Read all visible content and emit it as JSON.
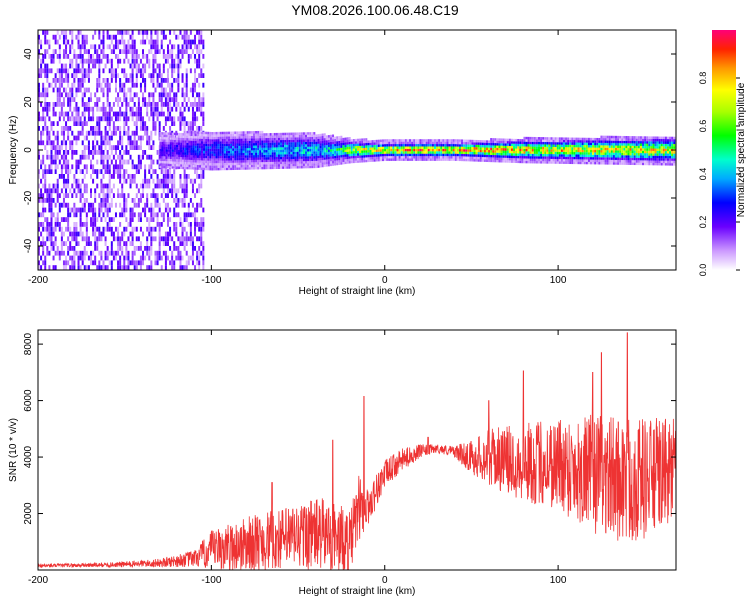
{
  "title": "YM08.2026.100.06.48.C19",
  "chart_data": [
    {
      "type": "heatmap",
      "xlabel": "Height of straight line (km)",
      "ylabel": "Frequency (Hz)",
      "xlim": [
        -200,
        168
      ],
      "ylim": [
        -50,
        50
      ],
      "xticks": [
        -200,
        -100,
        0,
        100
      ],
      "yticks": [
        -40,
        -20,
        0,
        20,
        40
      ],
      "colorbar": {
        "label": "Normalized spectral amplitude",
        "range": [
          0,
          1
        ],
        "ticks": [
          0.0,
          0.2,
          0.4,
          0.6,
          0.8
        ]
      },
      "features": {
        "noise_region_x": [
          -200,
          -105
        ],
        "band_start_x": -130,
        "band_center_freq": 0,
        "band_halfwidth_hz": [
          [
            -130,
            5
          ],
          [
            -100,
            6
          ],
          [
            -40,
            5
          ],
          [
            -20,
            3
          ],
          [
            0,
            2
          ],
          [
            40,
            2
          ],
          [
            80,
            3
          ],
          [
            168,
            4
          ]
        ],
        "peak_amplitude_by_x": [
          [
            -130,
            0.25
          ],
          [
            -100,
            0.35
          ],
          [
            -60,
            0.45
          ],
          [
            -30,
            0.5
          ],
          [
            -20,
            0.7
          ],
          [
            0,
            0.9
          ],
          [
            40,
            0.95
          ],
          [
            100,
            0.85
          ],
          [
            168,
            0.8
          ]
        ]
      }
    },
    {
      "type": "line",
      "xlabel": "Height of straight line (km)",
      "ylabel": "SNR (10 * v/v)",
      "xlim": [
        -200,
        168
      ],
      "ylim": [
        0,
        8500
      ],
      "xticks": [
        -200,
        -100,
        0,
        100
      ],
      "yticks": [
        2000,
        4000,
        6000,
        8000
      ],
      "color": "#ee3333",
      "series": [
        {
          "name": "SNR",
          "envelope_x": [
            -200,
            -160,
            -130,
            -110,
            -100,
            -80,
            -60,
            -40,
            -30,
            -20,
            -15,
            -10,
            -5,
            0,
            10,
            20,
            30,
            40,
            50,
            60,
            80,
            100,
            120,
            140,
            155,
            168
          ],
          "envelope_mean": [
            150,
            180,
            250,
            400,
            700,
            900,
            1100,
            1300,
            1200,
            900,
            2200,
            2200,
            2800,
            3400,
            3900,
            4200,
            4300,
            4200,
            4000,
            4000,
            3800,
            3800,
            3400,
            3200,
            3300,
            3600
          ],
          "envelope_spread": [
            60,
            80,
            150,
            300,
            700,
            1000,
            1100,
            1300,
            1300,
            1200,
            1200,
            700,
            600,
            500,
            400,
            250,
            150,
            200,
            600,
            1000,
            1400,
            1700,
            2100,
            2300,
            2100,
            1800
          ],
          "spikes": [
            [
              -30,
              4600
            ],
            [
              -12,
              6150
            ],
            [
              -65,
              3100
            ],
            [
              25,
              4700
            ],
            [
              60,
              6000
            ],
            [
              80,
              7050
            ],
            [
              120,
              7000
            ],
            [
              125,
              7700
            ],
            [
              140,
              8400
            ]
          ]
        }
      ]
    }
  ]
}
